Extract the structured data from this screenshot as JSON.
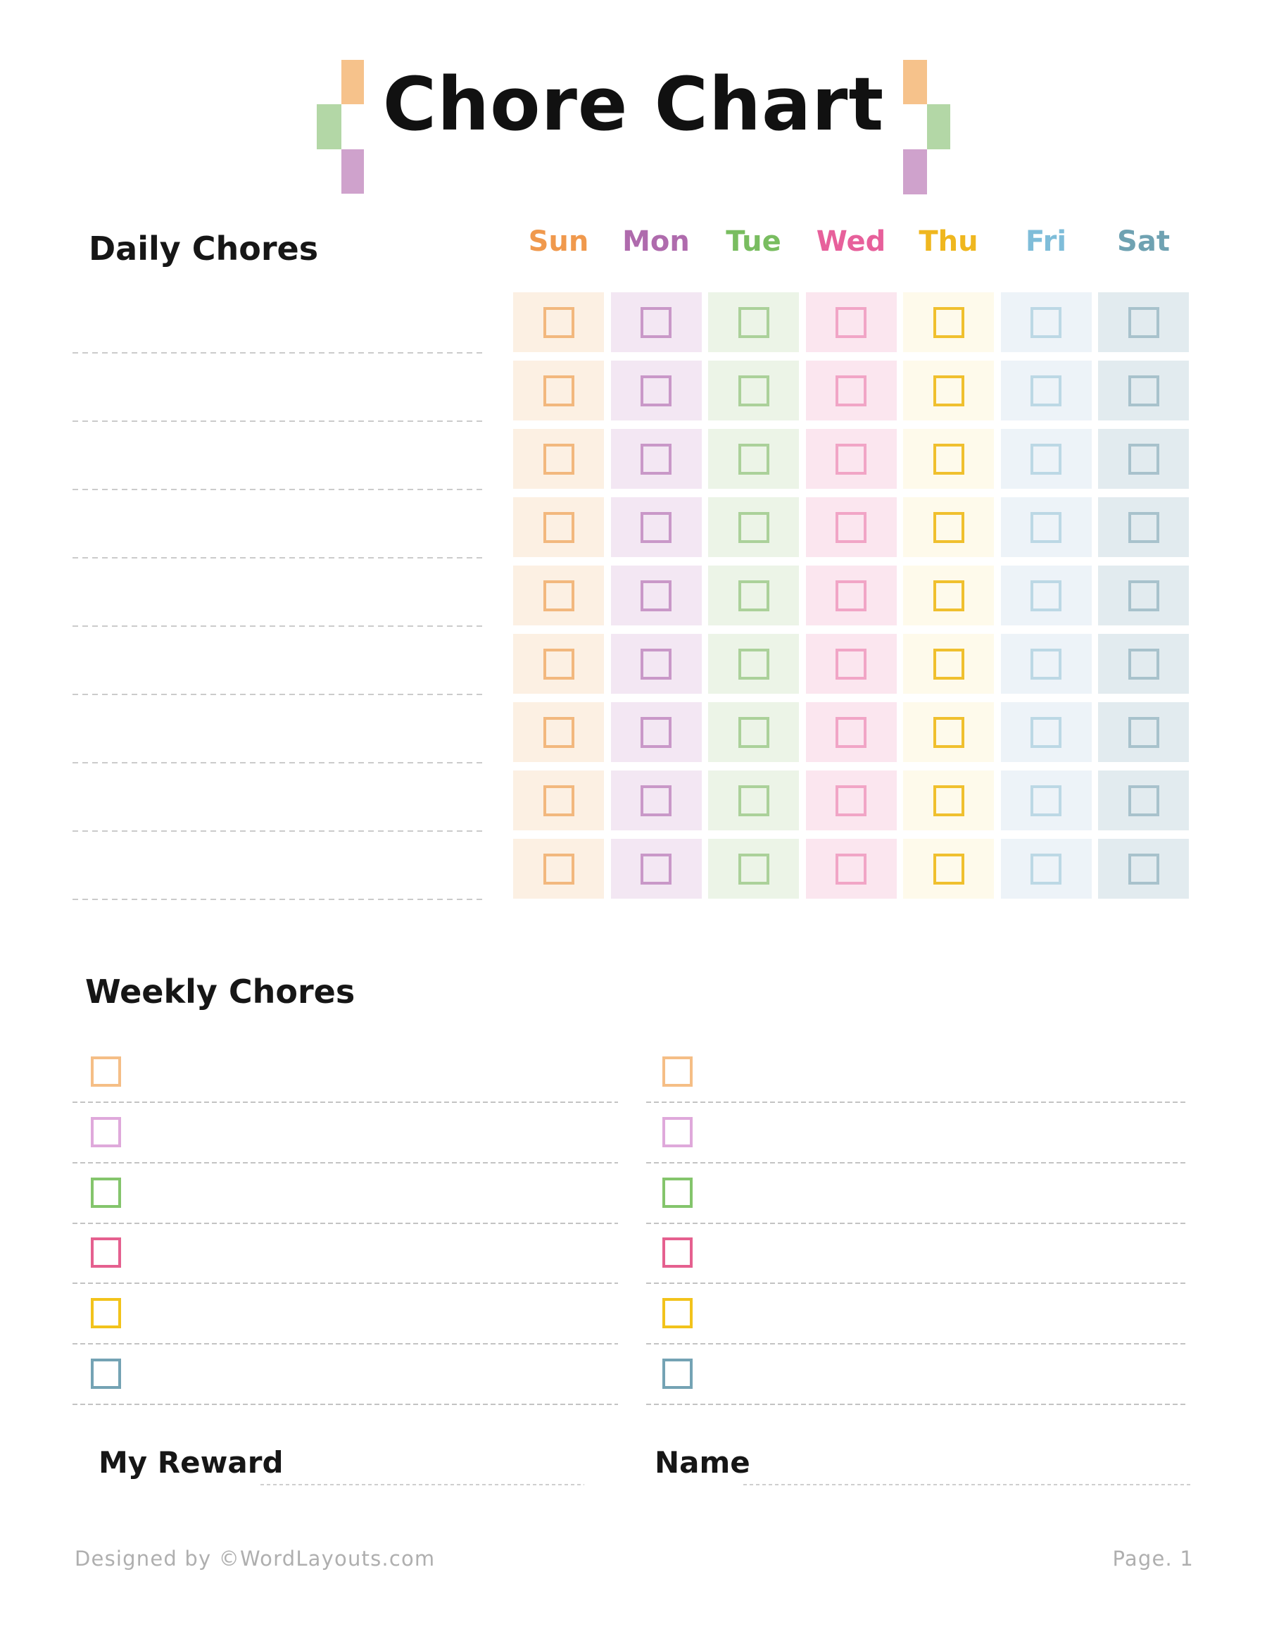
{
  "title": "Chore Chart",
  "decor": {
    "orange": "#F6C28B",
    "green": "#B3D7A6",
    "purple": "#CFA2CC"
  },
  "daily": {
    "heading": "Daily Chores",
    "rows": 9,
    "days": [
      {
        "label": "Sun",
        "label_color": "#F0994D",
        "cell_bg": "#FCF0E3",
        "box_border": "#F2B87E"
      },
      {
        "label": "Mon",
        "label_color": "#AF6BAD",
        "cell_bg": "#F3E7F3",
        "box_border": "#C998C8"
      },
      {
        "label": "Tue",
        "label_color": "#79BD60",
        "cell_bg": "#ECF4E7",
        "box_border": "#ABD19A"
      },
      {
        "label": "Wed",
        "label_color": "#E7609B",
        "cell_bg": "#FBE6EF",
        "box_border": "#F1A5C6"
      },
      {
        "label": "Thu",
        "label_color": "#EFB71F",
        "cell_bg": "#FEFAEB",
        "box_border": "#F0C02E"
      },
      {
        "label": "Fri",
        "label_color": "#7FBDD9",
        "cell_bg": "#EDF3F8",
        "box_border": "#BCD8E5"
      },
      {
        "label": "Sat",
        "label_color": "#6FA2B2",
        "cell_bg": "#E2EBEF",
        "box_border": "#A8C2CC"
      }
    ]
  },
  "weekly": {
    "heading": "Weekly Chores",
    "columns": 2,
    "items_per_column": 6,
    "box_colors": [
      "#F5BE86",
      "#DFA9DB",
      "#84C56C",
      "#E5608F",
      "#F2C31B",
      "#74A3B4"
    ]
  },
  "fields": {
    "reward_label": "My Reward",
    "name_label": "Name"
  },
  "footer": {
    "credit": "Designed by ©WordLayouts.com",
    "page": "Page. 1"
  }
}
